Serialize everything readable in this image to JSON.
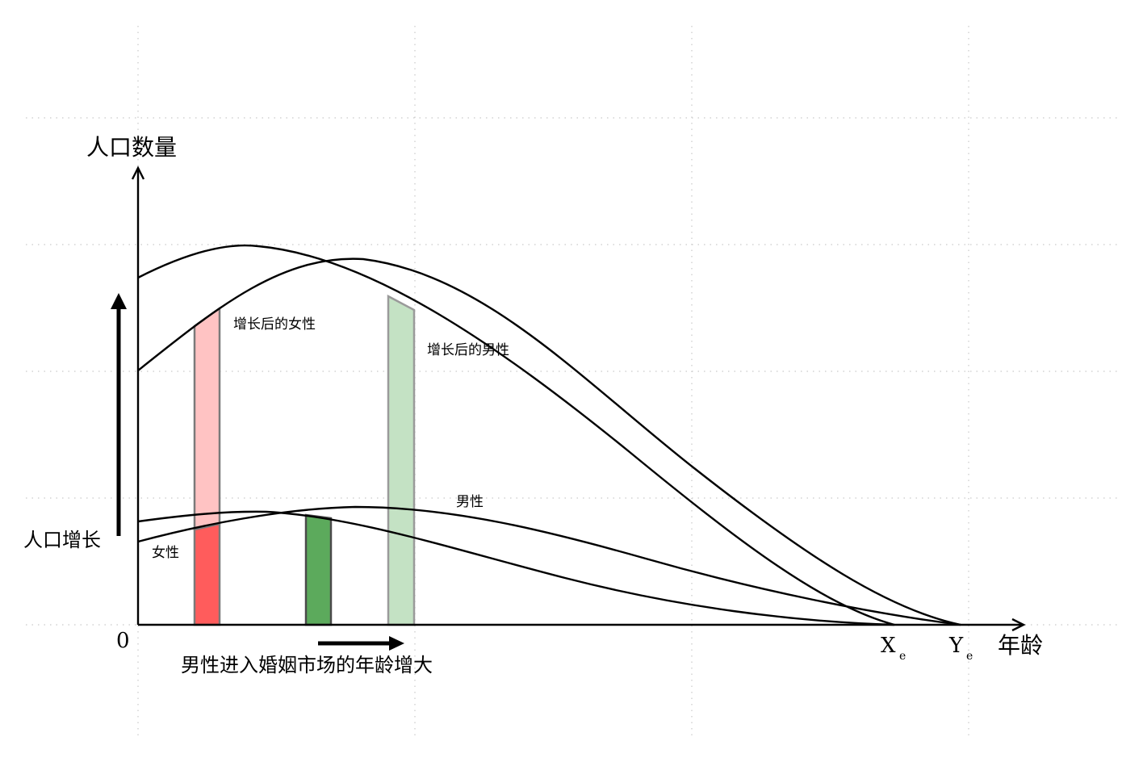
{
  "labels": {
    "y_axis": "人口数量",
    "x_axis": "年龄",
    "origin": "0",
    "population_growth": "人口增长",
    "age_increase": "男性进入婚姻市场的年龄增大",
    "female": "女性",
    "male": "男性",
    "female_after": "增长后的女性",
    "male_after": "增长后的男性",
    "xe_main": "X",
    "xe_sub": "e",
    "ye_main": "Y",
    "ye_sub": "e"
  },
  "colors": {
    "female_after_fill": "#ffc3c3",
    "female_fill": "#ff5c5c",
    "male_fill": "#5caa5c",
    "male_after_fill": "#c4e2c4",
    "band_stroke": "#7a7a7a",
    "grid": "#c9c9c9",
    "curve": "#000000"
  }
}
